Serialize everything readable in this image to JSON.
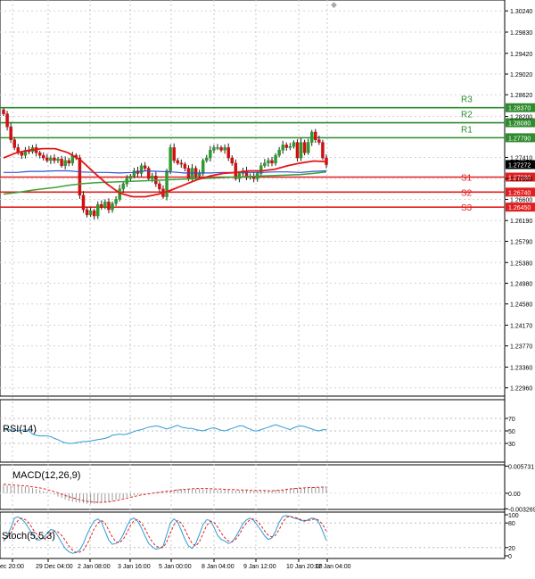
{
  "chart_data": {
    "type": "candlestick",
    "title": "",
    "price_axis": {
      "min": 1.2296,
      "max": 1.3024,
      "ticks": [
        "1.30240",
        "1.29830",
        "1.29420",
        "1.29020",
        "1.28620",
        "1.28200",
        "1.27410",
        "1.27000",
        "1.26600",
        "1.26190",
        "1.25790",
        "1.25380",
        "1.24980",
        "1.24580",
        "1.24170",
        "1.23770",
        "1.23360",
        "1.22960"
      ],
      "current_price": "1.27272"
    },
    "levels": [
      {
        "name": "R3",
        "value": 1.2837,
        "label": "1.28370",
        "color": "#2e8b2e"
      },
      {
        "name": "R2",
        "value": 1.2808,
        "label": "1.28080",
        "color": "#2e8b2e"
      },
      {
        "name": "R1",
        "value": 1.2779,
        "label": "1.27790",
        "color": "#2e8b2e"
      },
      {
        "name": "S1",
        "value": 1.2703,
        "label": "1.27030",
        "color": "#e02020"
      },
      {
        "name": "S2",
        "value": 1.2674,
        "label": "1.26740",
        "color": "#e02020"
      },
      {
        "name": "S3",
        "value": 1.2645,
        "label": "1.26450",
        "color": "#e02020"
      }
    ],
    "x_ticks": [
      "ec 20:00",
      "29 Dec 04:00",
      "2 Jan 08:00",
      "3 Jan 16:00",
      "5 Jan 00:00",
      "8 Jan 04:00",
      "9 Jan 12:00",
      "10 Jan 20:00",
      "12 Jan 04:00"
    ],
    "candles_close": [
      1.2825,
      1.28,
      1.2775,
      1.276,
      1.275,
      1.2745,
      1.2755,
      1.2752,
      1.276,
      1.275,
      1.2745,
      1.274,
      1.2735,
      1.274,
      1.2735,
      1.2738,
      1.2725,
      1.2735,
      1.273,
      1.2745,
      1.274,
      1.2668,
      1.264,
      1.263,
      1.2638,
      1.2628,
      1.265,
      1.2645,
      1.2655,
      1.264,
      1.2652,
      1.266,
      1.268,
      1.269,
      1.27,
      1.2705,
      1.2715,
      1.271,
      1.2725,
      1.272,
      1.27,
      1.2705,
      1.269,
      1.268,
      1.2665,
      1.2715,
      1.276,
      1.2735,
      1.273,
      1.2728,
      1.272,
      1.27,
      1.272,
      1.2705,
      1.271,
      1.2735,
      1.274,
      1.2755,
      1.276,
      1.276,
      1.2755,
      1.276,
      1.274,
      1.273,
      1.27,
      1.271,
      1.2715,
      1.2702,
      1.2705,
      1.27,
      1.271,
      1.2725,
      1.273,
      1.2735,
      1.273,
      1.2745,
      1.2755,
      1.2765,
      1.276,
      1.2762,
      1.277,
      1.274,
      1.277,
      1.275,
      1.277,
      1.279,
      1.2775,
      1.277,
      1.274,
      1.2727
    ],
    "ma_red_close": [
      1.274,
      1.275,
      1.2755,
      1.2758,
      1.2758,
      1.275,
      1.2735,
      1.2712,
      1.269,
      1.2672,
      1.2665,
      1.2665,
      1.267,
      1.2678,
      1.2688,
      1.2698,
      1.2705,
      1.271,
      1.2712,
      1.2715,
      1.2715,
      1.2718,
      1.2725,
      1.273,
      1.2734,
      1.2733
    ],
    "ma_blue": [
      1.2712,
      1.2712,
      1.2714,
      1.2714,
      1.2715,
      1.2715,
      1.2713,
      1.2712,
      1.2712,
      1.2711,
      1.2712,
      1.2715,
      1.2714,
      1.2713,
      1.2711,
      1.2711,
      1.2711,
      1.2712,
      1.2712,
      1.2712,
      1.2712,
      1.2713,
      1.2713,
      1.2712,
      1.2714,
      1.2715
    ],
    "ma_green": [
      1.267,
      1.2673,
      1.2677,
      1.268,
      1.2683,
      1.2687,
      1.269,
      1.2692,
      1.2693,
      1.2694,
      1.2695,
      1.2696,
      1.2697,
      1.2698,
      1.2699,
      1.27,
      1.2701,
      1.2702,
      1.2703,
      1.2704,
      1.2705,
      1.2706,
      1.2707,
      1.2708,
      1.271,
      1.2713
    ],
    "rsi": {
      "label": "RSI(14)",
      "ticks": [
        "70",
        "50",
        "30"
      ],
      "values": [
        52,
        52,
        52,
        51,
        50,
        51,
        52,
        50,
        45,
        43,
        42,
        42,
        42,
        41,
        38,
        36,
        33,
        31,
        30,
        30,
        31,
        32,
        33,
        33,
        34,
        35,
        36,
        37,
        38,
        40,
        43,
        44,
        45,
        44,
        45,
        47,
        49,
        51,
        52,
        54,
        56,
        57,
        58,
        57,
        55,
        53,
        55,
        57,
        59,
        56,
        55,
        54,
        54,
        52,
        51,
        50,
        52,
        54,
        55,
        53,
        51,
        50,
        52,
        54,
        56,
        58,
        58,
        55,
        53,
        50,
        50,
        52,
        54,
        56,
        58,
        60,
        58,
        56,
        54,
        52,
        55,
        57,
        58,
        57,
        55,
        53,
        51,
        50,
        52,
        52
      ]
    },
    "macd": {
      "label": "MACD(12,26,9)",
      "ticks": [
        "0.005731",
        "0.00",
        "-0.003269"
      ],
      "histogram": [
        0.0018,
        0.0017,
        0.0016,
        0.0016,
        0.0015,
        0.0014,
        0.0014,
        0.0013,
        0.0011,
        0.0009,
        0.0007,
        0.0005,
        0.0003,
        0.0001,
        -0.0003,
        -0.0007,
        -0.001,
        -0.0013,
        -0.0016,
        -0.0018,
        -0.0019,
        -0.002,
        -0.0021,
        -0.0022,
        -0.0022,
        -0.0022,
        -0.0021,
        -0.002,
        -0.0019,
        -0.0018,
        -0.0016,
        -0.0014,
        -0.0012,
        -0.001,
        -0.0008,
        -0.0006,
        -0.0004,
        -0.0003,
        -0.0002,
        -0.0002,
        -0.0001,
        0.0,
        0.0001,
        0.0002,
        0.0003,
        0.0004,
        0.0006,
        0.0007,
        0.0008,
        0.0009,
        0.0009,
        0.0009,
        0.0009,
        0.0009,
        0.0009,
        0.0008,
        0.0008,
        0.0008,
        0.0008,
        0.0007,
        0.0007,
        0.0007,
        0.0007,
        0.0006,
        0.0006,
        0.0006,
        0.0006,
        0.0006,
        0.0005,
        0.0005,
        0.0005,
        0.0005,
        0.0005,
        0.0006,
        0.0006,
        0.0007,
        0.0007,
        0.0008,
        0.0009,
        0.001,
        0.0011,
        0.0011,
        0.0012,
        0.0012,
        0.0013,
        0.0013,
        0.0013,
        0.0013,
        0.0012,
        0.0012
      ],
      "signal": [
        0.0019,
        0.0018,
        0.0017,
        0.0016,
        0.0015,
        0.0013,
        0.0011,
        0.0008,
        0.0004,
        0.0,
        -0.0005,
        -0.0009,
        -0.0013,
        -0.0016,
        -0.0018,
        -0.0019,
        -0.0019,
        -0.0018,
        -0.0016,
        -0.0013,
        -0.001,
        -0.0007,
        -0.0004,
        -0.0002,
        0.0,
        0.0002,
        0.0004,
        0.0005,
        0.0007,
        0.0008,
        0.0009,
        0.001,
        0.001,
        0.001,
        0.0009,
        0.0009,
        0.0008,
        0.0008,
        0.0007,
        0.0007,
        0.0006,
        0.0006,
        0.0006,
        0.0005,
        0.0006,
        0.0007,
        0.0009,
        0.001,
        0.0011,
        0.0012,
        0.0012,
        0.0013,
        0.0013
      ]
    },
    "stoch": {
      "label": "Stoch(5,5,3)",
      "ticks": [
        "100",
        "80",
        "20",
        "0"
      ],
      "k": [
        35,
        48,
        68,
        92,
        95,
        90,
        80,
        66,
        52,
        40,
        38,
        44,
        55,
        64,
        62,
        48,
        32,
        18,
        10,
        6,
        8,
        14,
        30,
        52,
        70,
        85,
        90,
        82,
        60,
        38,
        28,
        30,
        36,
        52,
        72,
        88,
        92,
        84,
        68,
        48,
        30,
        22,
        16,
        18,
        24,
        52,
        80,
        90,
        82,
        62,
        40,
        24,
        18,
        30,
        52,
        76,
        88,
        86,
        70,
        50,
        40,
        36,
        30,
        34,
        46,
        62,
        78,
        88,
        92,
        86,
        74,
        62,
        48,
        40,
        44,
        60,
        82,
        96,
        98,
        96,
        92,
        90,
        86,
        84,
        88,
        92,
        90,
        80,
        60,
        38
      ],
      "d": [
        40,
        45,
        55,
        75,
        86,
        92,
        88,
        80,
        66,
        54,
        44,
        42,
        46,
        54,
        60,
        58,
        50,
        38,
        24,
        14,
        8,
        9,
        14,
        28,
        46,
        66,
        80,
        86,
        80,
        62,
        46,
        34,
        32,
        40,
        56,
        74,
        86,
        88,
        80,
        66,
        48,
        34,
        24,
        20,
        20,
        34,
        56,
        76,
        86,
        80,
        64,
        46,
        30,
        24,
        34,
        54,
        74,
        84,
        82,
        70,
        56,
        44,
        36,
        34,
        40,
        52,
        68,
        80,
        88,
        90,
        84,
        74,
        60,
        50,
        46,
        50,
        64,
        82,
        94,
        96,
        94,
        92,
        88,
        86,
        86,
        88,
        90,
        86,
        76,
        60
      ]
    }
  }
}
